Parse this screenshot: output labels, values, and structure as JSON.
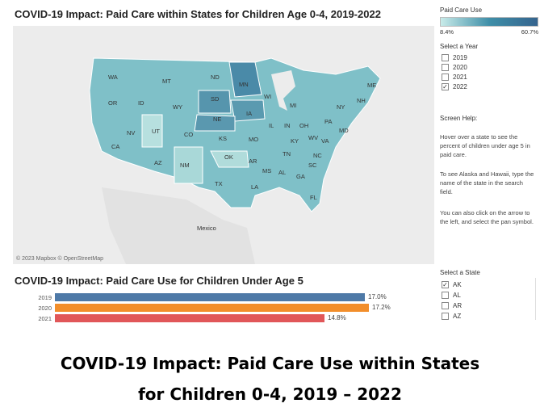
{
  "map": {
    "title": "COVID-19 Impact: Paid Care within States for Children Age 0-4, 2019-2022",
    "credit": "© 2023 Mapbox © OpenStreetMap",
    "country_label": "Mexico",
    "state_labels": [
      "WA",
      "OR",
      "CA",
      "NV",
      "ID",
      "MT",
      "WY",
      "UT",
      "AZ",
      "CO",
      "NM",
      "ND",
      "SD",
      "NE",
      "KS",
      "OK",
      "TX",
      "MN",
      "IA",
      "MO",
      "AR",
      "LA",
      "WI",
      "IL",
      "MI",
      "IN",
      "OH",
      "KY",
      "TN",
      "MS",
      "AL",
      "GA",
      "FL",
      "SC",
      "NC",
      "VA",
      "WV",
      "PA",
      "NY",
      "ME",
      "MD",
      "NH"
    ]
  },
  "legend": {
    "title": "Paid Care Use",
    "min": "8.4%",
    "max": "60.7%",
    "colors": [
      "#c8ebe9",
      "#3f8fa8",
      "#35648e"
    ]
  },
  "year_filter": {
    "title": "Select a Year",
    "options": [
      {
        "label": "2019",
        "checked": false
      },
      {
        "label": "2020",
        "checked": false
      },
      {
        "label": "2021",
        "checked": false
      },
      {
        "label": "2022",
        "checked": true
      }
    ]
  },
  "help": {
    "title": "Screen Help:",
    "p1": "Hover over a state to see the percent of children under age 5 in paid care.",
    "p2": "To see Alaska and Hawaii, type the name of the state in the search field.",
    "p3": "You can also click on the arrow to the left, and select the pan symbol."
  },
  "state_filter": {
    "title": "Select a State",
    "options": [
      {
        "label": "AK",
        "checked": true
      },
      {
        "label": "AL",
        "checked": false
      },
      {
        "label": "AR",
        "checked": false
      },
      {
        "label": "AZ",
        "checked": false
      }
    ]
  },
  "bar_chart": {
    "title": "COVID-19 Impact: Paid Care Use for Children Under Age 5"
  },
  "chart_data": {
    "type": "bar",
    "orientation": "horizontal",
    "title": "COVID-19 Impact: Paid Care Use for Children Under Age 5",
    "categories": [
      "2019",
      "2020",
      "2021"
    ],
    "values": [
      17.0,
      17.2,
      14.8
    ],
    "labels": [
      "17.0%",
      "17.2%",
      "14.8%"
    ],
    "colors": [
      "#4e79a7",
      "#f28e2b",
      "#e15759"
    ],
    "xlim": [
      0,
      20
    ]
  },
  "caption": {
    "line1": "COVID-19 Impact: Paid Care Use within States",
    "line2": "for Children 0-4, 2019 – 2022"
  }
}
